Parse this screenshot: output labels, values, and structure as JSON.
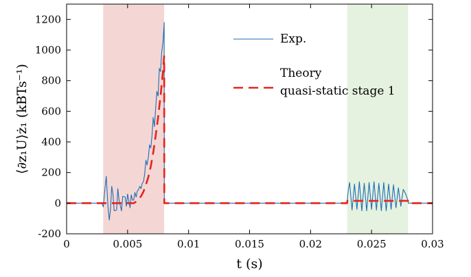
{
  "chart_data": {
    "type": "line",
    "xlabel": "t (s)",
    "ylabel": "⟨∂z₁U⟩ż₁ (kBTs⁻¹)",
    "xlim": [
      0,
      0.03
    ],
    "ylim": [
      -200,
      1300
    ],
    "xticks": [
      0,
      0.005,
      0.01,
      0.015,
      0.02,
      0.025,
      0.03
    ],
    "xtick_labels": [
      "0",
      "0.005",
      "0.01",
      "0.015",
      "0.02",
      "0.025",
      "0.03"
    ],
    "yticks": [
      -200,
      0,
      200,
      400,
      600,
      800,
      1000,
      1200
    ],
    "ytick_labels": [
      "-200",
      "0",
      "200",
      "400",
      "600",
      "800",
      "1000",
      "1200"
    ],
    "grid": false,
    "legend_position": "top-right",
    "shaded_regions": [
      {
        "x": [
          0.003,
          0.008
        ],
        "color": "#f4d7d4"
      },
      {
        "x": [
          0.023,
          0.028
        ],
        "color": "#e5f2df"
      }
    ],
    "series": [
      {
        "name": "Exp.",
        "color": "#1f6db5",
        "style": "solid",
        "x": [
          0,
          0.0029,
          0.00301,
          0.0031,
          0.00325,
          0.0034,
          0.0035,
          0.0036,
          0.0037,
          0.0038,
          0.0039,
          0.0041,
          0.0042,
          0.0043,
          0.0045,
          0.0046,
          0.0048,
          0.0049,
          0.005,
          0.0051,
          0.0052,
          0.0053,
          0.0054,
          0.0055,
          0.0056,
          0.0057,
          0.0058,
          0.0059,
          0.006,
          0.0061,
          0.0062,
          0.0063,
          0.0064,
          0.0065,
          0.0066,
          0.0067,
          0.0068,
          0.0069,
          0.007,
          0.0071,
          0.0072,
          0.0073,
          0.0074,
          0.0075,
          0.0076,
          0.0077,
          0.0078,
          0.0079,
          0.008,
          0.00801,
          0.0081,
          0.023,
          0.02301,
          0.0231,
          0.0232,
          0.0234,
          0.0236,
          0.0238,
          0.024,
          0.0242,
          0.0244,
          0.0246,
          0.0248,
          0.025,
          0.0252,
          0.0254,
          0.0256,
          0.0258,
          0.026,
          0.0262,
          0.0264,
          0.0266,
          0.0268,
          0.027,
          0.0272,
          0.0274,
          0.0276,
          0.0278,
          0.028,
          0.02801,
          0.03
        ],
        "y": [
          0,
          0,
          -25,
          60,
          175,
          -30,
          -110,
          -40,
          110,
          60,
          -50,
          -45,
          95,
          20,
          -50,
          45,
          40,
          -20,
          60,
          15,
          -30,
          55,
          20,
          20,
          70,
          40,
          80,
          90,
          110,
          95,
          130,
          140,
          190,
          280,
          250,
          300,
          380,
          360,
          440,
          560,
          500,
          620,
          730,
          700,
          880,
          860,
          990,
          1050,
          1180,
          0,
          0,
          0,
          20,
          90,
          135,
          -45,
          125,
          -40,
          140,
          -50,
          130,
          -50,
          135,
          -40,
          140,
          -45,
          130,
          -50,
          135,
          -50,
          125,
          -40,
          120,
          -30,
          100,
          -20,
          90,
          60,
          15,
          0,
          0
        ]
      },
      {
        "name": "Theory\nquasi-static stage 1",
        "color": "#e8221b",
        "style": "dashed",
        "x": [
          0,
          0.0055,
          0.0057,
          0.0059,
          0.0061,
          0.0063,
          0.0065,
          0.0067,
          0.0069,
          0.0071,
          0.0073,
          0.0075,
          0.0077,
          0.0079,
          0.008,
          0.00801,
          0.023,
          0.02301,
          0.028,
          0.02801,
          0.03
        ],
        "y": [
          0,
          0,
          10,
          25,
          45,
          75,
          120,
          170,
          240,
          330,
          440,
          560,
          700,
          860,
          960,
          0,
          0,
          15,
          15,
          0,
          0
        ]
      }
    ]
  }
}
